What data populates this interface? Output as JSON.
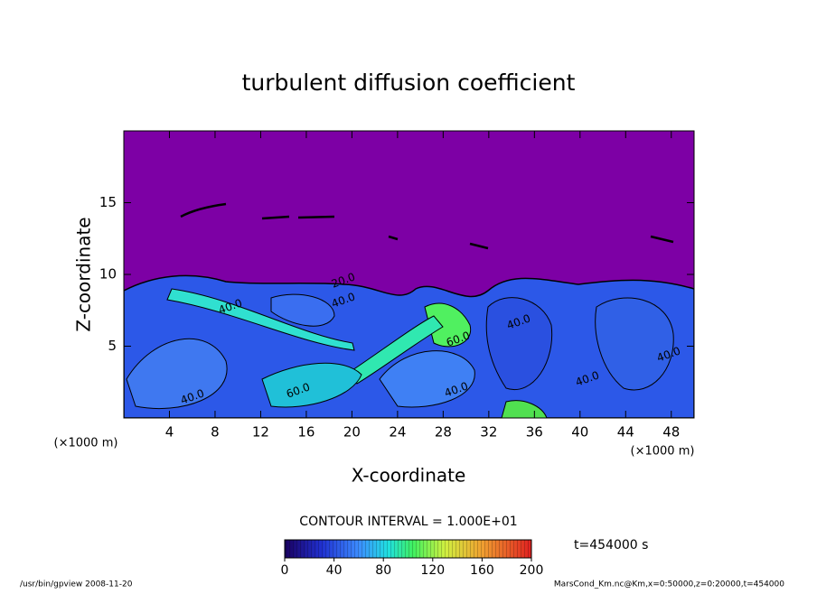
{
  "chart_data": {
    "type": "contour",
    "title": "turbulent diffusion coefficient",
    "x_label": "X-coordinate",
    "y_label": "Z-coordinate",
    "x_unit": "(×1000 m)",
    "y_unit": "(×1000 m)",
    "xlim": [
      0,
      50
    ],
    "xticks": [
      4,
      8,
      12,
      16,
      20,
      24,
      28,
      32,
      36,
      40,
      44,
      48
    ],
    "ylim": [
      0,
      20
    ],
    "yticks": [
      5,
      10,
      15
    ],
    "contour_interval": "CONTOUR INTERVAL = 1.000E+01",
    "contour_labels": [
      "20.0",
      "40.0",
      "40.0",
      "60.0",
      "40.0",
      "60.0",
      "40.0",
      "40.0",
      "40.0",
      "40.0"
    ],
    "time_label": "t=454000 s",
    "clim": [
      0,
      200
    ],
    "cticks": [
      0,
      40,
      80,
      120,
      160,
      200
    ],
    "footer_left": "/usr/bin/gpview  2008-11-20",
    "footer_right": "MarsCond_Km.nc@Km,x=0:50000,z=0:20000,t=454000"
  }
}
